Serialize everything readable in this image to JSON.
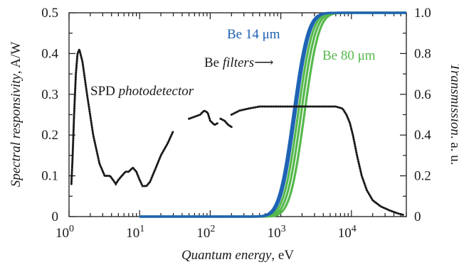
{
  "chart_data": {
    "type": "line",
    "x_scale": "log",
    "xlim": [
      1,
      60000
    ],
    "ylim_left": [
      0,
      0.5
    ],
    "ylim_right": [
      0,
      1.0
    ],
    "xlabel": {
      "italic": "Quantum energy",
      "plain": ", eV"
    },
    "ylabel_left": {
      "italic": "Spectral responsivity",
      "plain": ", A/W"
    },
    "ylabel_right": {
      "italic": "Transmission",
      "plain": ". a. u."
    },
    "x_ticks": [
      {
        "value": 1,
        "base": "10",
        "exp": "0"
      },
      {
        "value": 10,
        "base": "10",
        "exp": "1"
      },
      {
        "value": 100,
        "base": "10",
        "exp": "2"
      },
      {
        "value": 1000,
        "base": "10",
        "exp": "3"
      },
      {
        "value": 10000,
        "base": "10",
        "exp": "4"
      }
    ],
    "y_left_ticks": [
      "0",
      "0.1",
      "0.2",
      "0.3",
      "0.4",
      "0.5"
    ],
    "y_right_ticks": [
      "0",
      "0.2",
      "0.4",
      "0.6",
      "0.8",
      "1.0"
    ],
    "grid": false,
    "colors": {
      "responsivity": "#1a1a1a",
      "blue": "#1f63b4",
      "green": "#56b84d"
    },
    "responsivity_segments": [
      [
        [
          1.08,
          0.08
        ],
        [
          1.12,
          0.14
        ],
        [
          1.18,
          0.25
        ],
        [
          1.25,
          0.35
        ],
        [
          1.32,
          0.4
        ],
        [
          1.4,
          0.41
        ],
        [
          1.55,
          0.38
        ],
        [
          1.8,
          0.3
        ],
        [
          2.2,
          0.2
        ],
        [
          2.7,
          0.13
        ],
        [
          3.2,
          0.1
        ],
        [
          3.8,
          0.1
        ],
        [
          4.2,
          0.09
        ],
        [
          4.6,
          0.08
        ],
        [
          5.0,
          0.09
        ],
        [
          5.6,
          0.1
        ],
        [
          6.3,
          0.11
        ],
        [
          7.0,
          0.11
        ],
        [
          8.0,
          0.12
        ],
        [
          9.0,
          0.11
        ],
        [
          10,
          0.09
        ],
        [
          11,
          0.075
        ],
        [
          12.5,
          0.075
        ],
        [
          14,
          0.085
        ],
        [
          17,
          0.12
        ],
        [
          20,
          0.15
        ],
        [
          25,
          0.18
        ],
        [
          30,
          0.21
        ]
      ],
      [
        [
          50,
          0.24
        ],
        [
          60,
          0.245
        ],
        [
          72,
          0.25
        ],
        [
          82,
          0.26
        ],
        [
          92,
          0.255
        ],
        [
          100,
          0.235
        ],
        [
          115,
          0.225
        ],
        [
          130,
          0.23
        ]
      ],
      [
        [
          140,
          0.24
        ],
        [
          160,
          0.235
        ],
        [
          180,
          0.225
        ],
        [
          200,
          0.22
        ]
      ],
      [
        [
          200,
          0.25
        ],
        [
          260,
          0.26
        ],
        [
          350,
          0.265
        ],
        [
          500,
          0.27
        ],
        [
          800,
          0.27
        ],
        [
          1200,
          0.27
        ],
        [
          2000,
          0.27
        ],
        [
          3000,
          0.27
        ],
        [
          4500,
          0.27
        ],
        [
          6000,
          0.27
        ],
        [
          7500,
          0.265
        ],
        [
          8500,
          0.25
        ],
        [
          9500,
          0.23
        ],
        [
          10500,
          0.2
        ],
        [
          12000,
          0.15
        ],
        [
          14000,
          0.1
        ],
        [
          16500,
          0.065
        ],
        [
          20000,
          0.04
        ],
        [
          26000,
          0.025
        ],
        [
          35000,
          0.015
        ],
        [
          45000,
          0.008
        ],
        [
          55000,
          0.004
        ]
      ]
    ],
    "filter_series": [
      {
        "color": "#1f63b4",
        "center": 1500,
        "sigma": 0.16
      },
      {
        "color": "#1f63b4",
        "center": 1600,
        "sigma": 0.16
      },
      {
        "color": "#56b84d",
        "center": 1750,
        "sigma": 0.16
      },
      {
        "color": "#56b84d",
        "center": 1930,
        "sigma": 0.16
      },
      {
        "color": "#56b84d",
        "center": 2150,
        "sigma": 0.16
      }
    ],
    "annotations": {
      "spd_plain": "SPD ",
      "spd_italic": "photodetector",
      "be_plain": "Be ",
      "be_italic": "filters",
      "be_arrow": "⟶",
      "be14": "Be 14 μm",
      "be80": "Be 80 μm"
    }
  }
}
